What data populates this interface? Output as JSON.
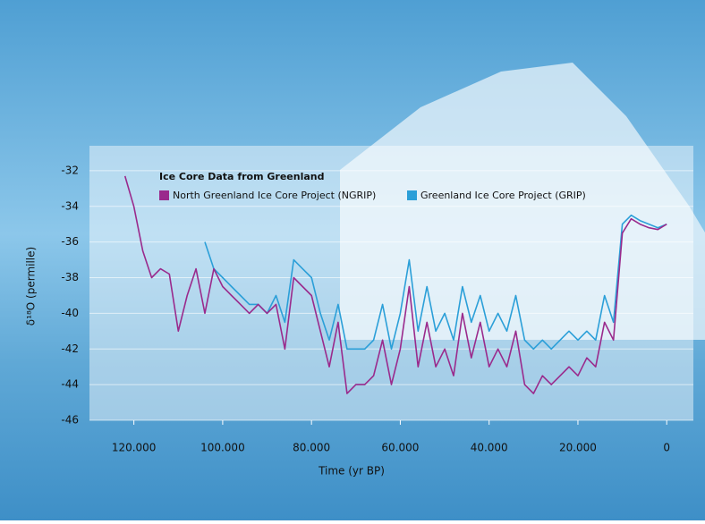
{
  "chart_data": {
    "type": "line",
    "title": "Ice Core Data from Greenland",
    "x_label": "Time (yr BP)",
    "y_label": "δ¹⁸O (permille)",
    "xlim": [
      130000,
      -6000
    ],
    "ylim": [
      -46,
      -30.6
    ],
    "xticks": [
      {
        "value": 120000,
        "label": "120.000"
      },
      {
        "value": 100000,
        "label": "100.000"
      },
      {
        "value": 80000,
        "label": "80.000"
      },
      {
        "value": 60000,
        "label": "60.000"
      },
      {
        "value": 40000,
        "label": "40.000"
      },
      {
        "value": 20000,
        "label": "20.000"
      },
      0
    ],
    "yticks": [
      -32,
      -34,
      -36,
      -38,
      -40,
      -42,
      -44,
      -46
    ],
    "grid": true,
    "series": [
      {
        "name": "Greenland Ice Core Project (GRIP)",
        "color": "#2b9fd8",
        "x": [
          104000,
          102000,
          100000,
          98000,
          96000,
          94000,
          92000,
          90000,
          88000,
          86000,
          84000,
          82000,
          80000,
          78000,
          76000,
          74000,
          72000,
          70000,
          68000,
          66000,
          64000,
          62000,
          60000,
          58000,
          56000,
          54000,
          52000,
          50000,
          48000,
          46000,
          44000,
          42000,
          40000,
          38000,
          36000,
          34000,
          32000,
          30000,
          28000,
          26000,
          24000,
          22000,
          20000,
          18000,
          16000,
          14000,
          12000,
          10000,
          8000,
          6000,
          4000,
          2000,
          0
        ],
        "values": [
          -36,
          -37.5,
          -38,
          -38.5,
          -39,
          -39.5,
          -39.5,
          -40,
          -39,
          -40.5,
          -37,
          -37.5,
          -38,
          -40,
          -41.5,
          -39.5,
          -42,
          -42,
          -42,
          -41.5,
          -39.5,
          -42,
          -40,
          -37,
          -41,
          -38.5,
          -41,
          -40,
          -41.5,
          -38.5,
          -40.5,
          -39,
          -41,
          -40,
          -41,
          -39,
          -41.5,
          -42,
          -41.5,
          -42,
          -41.5,
          -41,
          -41.5,
          -41,
          -41.5,
          -39,
          -40.5,
          -35,
          -34.5,
          -34.8,
          -35,
          -35.2,
          -35
        ]
      },
      {
        "name": "North Greenland Ice Core Project (NGRIP)",
        "color": "#9a2a8c",
        "x": [
          122000,
          120000,
          118000,
          116000,
          114000,
          112000,
          110000,
          108000,
          106000,
          104000,
          102000,
          100000,
          98000,
          96000,
          94000,
          92000,
          90000,
          88000,
          86000,
          84000,
          82000,
          80000,
          78000,
          76000,
          74000,
          72000,
          70000,
          68000,
          66000,
          64000,
          62000,
          60000,
          58000,
          56000,
          54000,
          52000,
          50000,
          48000,
          46000,
          44000,
          42000,
          40000,
          38000,
          36000,
          34000,
          32000,
          30000,
          28000,
          26000,
          24000,
          22000,
          20000,
          18000,
          16000,
          14000,
          12000,
          10000,
          8000,
          6000,
          4000,
          2000,
          0
        ],
        "values": [
          -32.3,
          -34,
          -36.5,
          -38,
          -37.5,
          -37.8,
          -41,
          -39,
          -37.5,
          -40,
          -37.5,
          -38.5,
          -39,
          -39.5,
          -40,
          -39.5,
          -40,
          -39.5,
          -42,
          -38,
          -38.5,
          -39,
          -41,
          -43,
          -40.5,
          -44.5,
          -44,
          -44,
          -43.5,
          -41.5,
          -44,
          -42,
          -38.5,
          -43,
          -40.5,
          -43,
          -42,
          -43.5,
          -40,
          -42.5,
          -40.5,
          -43,
          -42,
          -43,
          -41,
          -44,
          -44.5,
          -43.5,
          -44,
          -43.5,
          -43,
          -43.5,
          -42.5,
          -43,
          -40.5,
          -41.5,
          -35.5,
          -34.7,
          -35,
          -35.2,
          -35.3,
          -35
        ]
      }
    ]
  }
}
